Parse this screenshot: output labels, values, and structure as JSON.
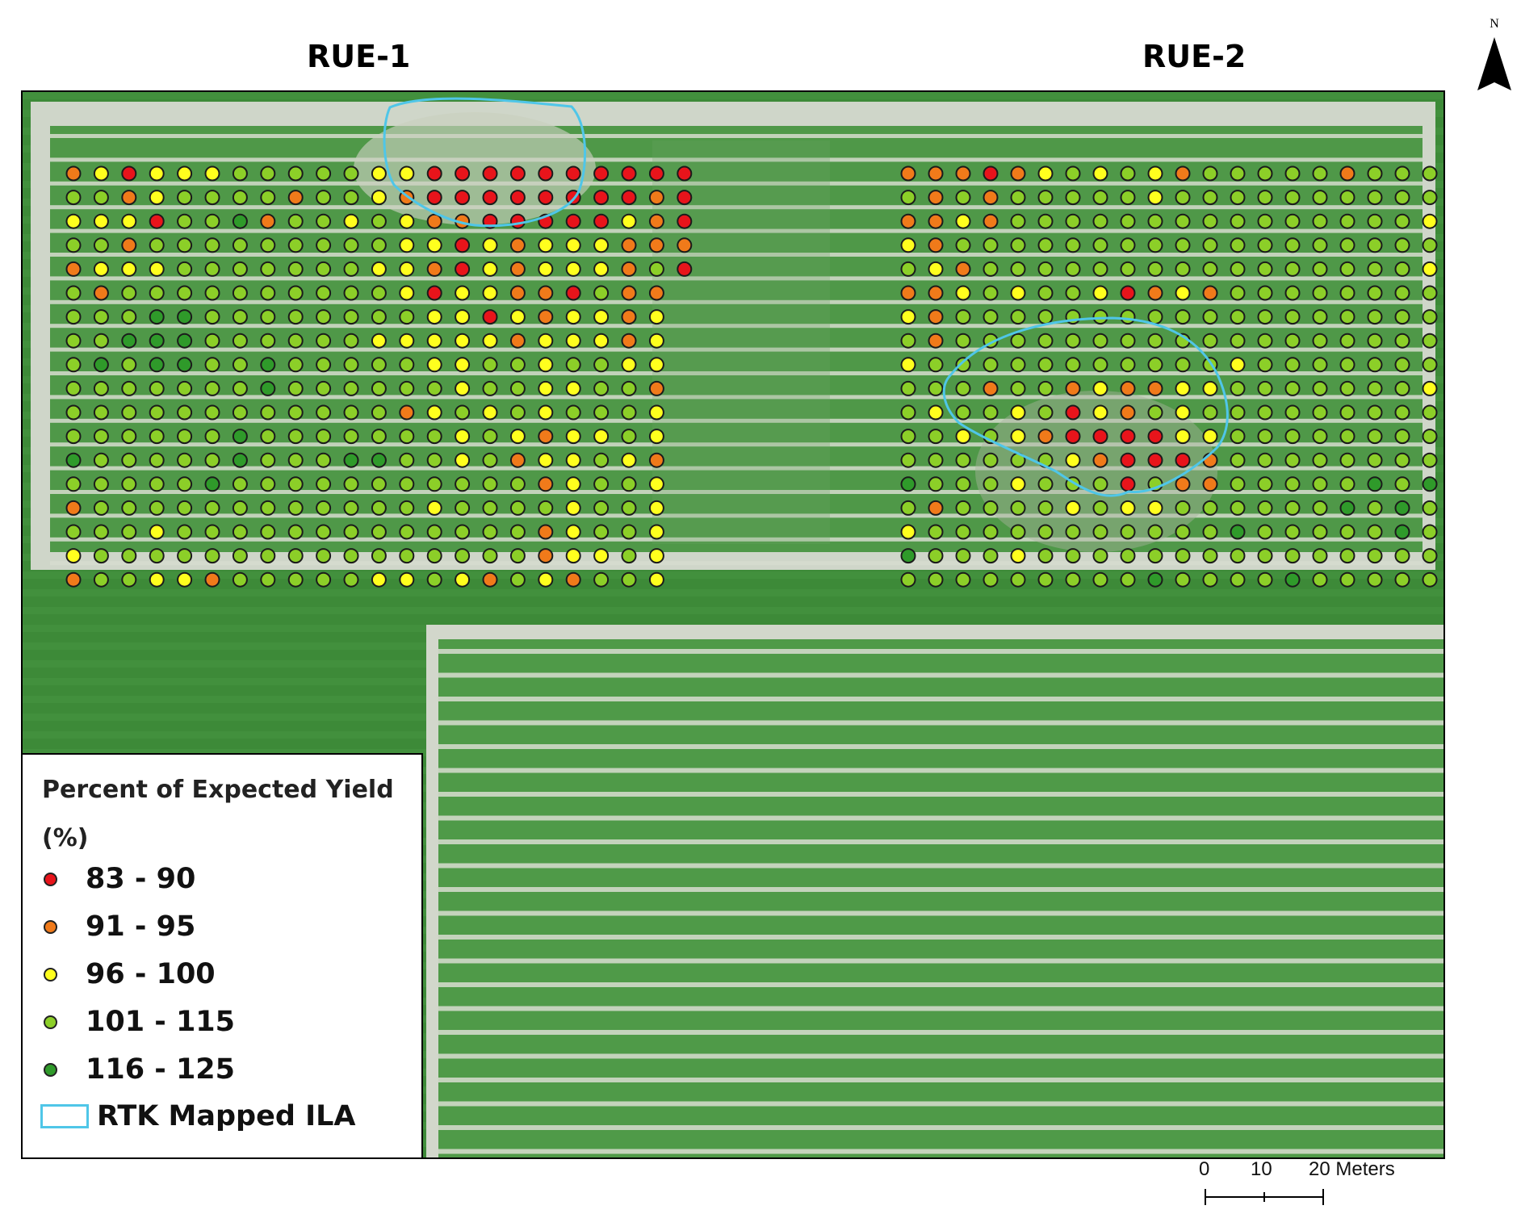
{
  "titles": {
    "left": "RUE-1",
    "right": "RUE-2"
  },
  "north_label": "N",
  "legend": {
    "title_line1": "Percent of Expected Yield",
    "title_line2": "(%)",
    "classes": [
      {
        "label": "83 - 90",
        "color": "#e8141b"
      },
      {
        "label": "91 - 95",
        "color": "#f07a1a"
      },
      {
        "label": "96 - 100",
        "color": "#ffff1e"
      },
      {
        "label": "101 - 115",
        "color": "#8ccf28"
      },
      {
        "label": "116 - 125",
        "color": "#2f9a2a"
      }
    ],
    "ila_label": "RTK Mapped ILA",
    "ila_color": "#4fc6e8"
  },
  "scale": {
    "ticks": [
      "0",
      "10",
      "20 Meters"
    ]
  },
  "plots": {
    "class_codes": {
      "R": "83 - 90",
      "O": "91 - 95",
      "Y": "96 - 100",
      "G": "101 - 115",
      "D": "116 - 125"
    },
    "rue1": [
      "OYRYYYGGGGGYYRRRRRRRRRR",
      "GGOYGGGGOGGYORRRRRRRROR",
      "YYYRGGDOGGYGYOORRRRRYOR",
      "GGOGGGGGGGGGYYRYOYYYOOO",
      "OYYYGGGGGGGYYORYOYYYOGR",
      "GOGGGGGGGGGGYRYYOORGOO",
      "GGGDDGGGGGGGGYYRYOYYOY",
      "GGDDDGGGGGGYYYYYOYYYOY",
      "GDGDDGGDGGGGGYYGGYGGYY",
      "GGGGGGGDGGGGGGYGGYYGGO",
      "GGGGGGGGGGGGOYGYGYGGGY",
      "GGGGGGDGGGGGGGYGYOYYGY",
      "DGGGGGDGGGDDGGYGOYYGYO",
      "GGGGGDGGGGGGGGGGGOYGGY",
      "OGGGGGGGGGGGGYGGGGYGGY",
      "GGGYGGGGGGGGGGGGGOYGGY",
      "YGGGGGGGGGGGGGGGGOYYGY",
      "OGGYYOGGGGGYYGYOGYOGGY"
    ],
    "rue2": [
      "OOOROYGYGYOGGGGGOGGGGDD",
      "GOGOGGGGGYGGGGGGGGGGDDD",
      "OOYOGGGGGGGGGGGGGGGYGDD",
      "YOGGGGGGGGGGGGGGGGGGYGG",
      "GYOGGGGGGGGGGGGGGGGYGGDG",
      "OOYGYGGYROYOGGGGGGGGGGG",
      "YOGGGGGGGGGGGGGGGGGGDGDG",
      "GOGGGGGGGGGGGGGGGGGGGGG",
      "YGGGGGGGGGGGYGGGGGGGGGG",
      "GGGOGGOYOOYYGGGGGGGYGYG",
      "GYGGYGRYOGYGGGGGGGGGYGG",
      "GGYGYORRRRYYGGGGGGGGGYGG",
      "GGGGGGYORRROGGGGGGGGGGG",
      "DGGGYGGGRGOOGGGGGDGDGGG",
      "GOGGGGYGYYGGGGGGDGDGGDG",
      "YGGGGGGGGGGGDGGGGGDGGGG",
      "DGGGYGGGGGGGGGGGGGGGGGG",
      "GGGGGGGGGDGGGGDGGGGGDGG"
    ]
  }
}
